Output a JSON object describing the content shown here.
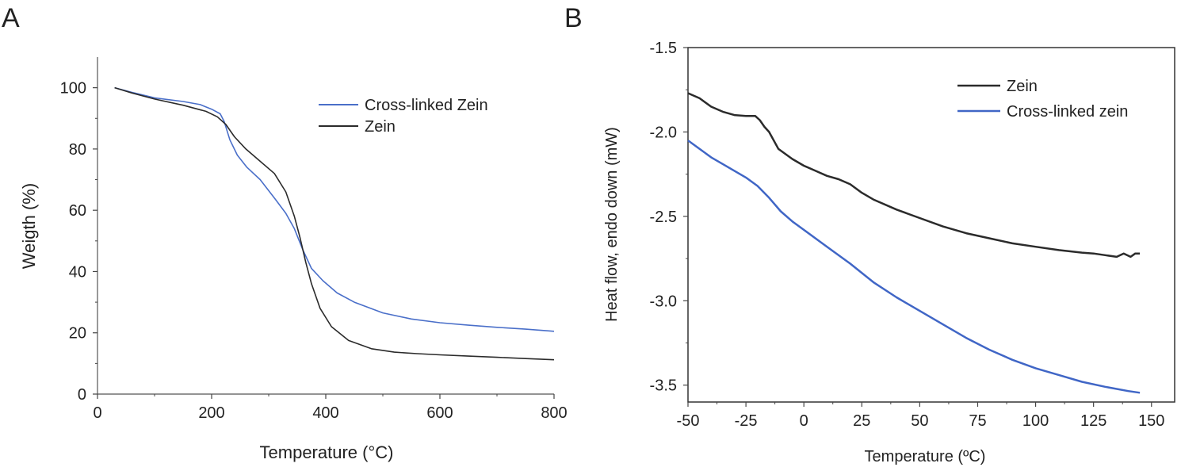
{
  "chart_data": [
    {
      "panel": "A",
      "type": "line",
      "title": "",
      "xlabel": "Temperature (°C)",
      "ylabel": "Weigth (%)",
      "xlim": [
        0,
        800
      ],
      "ylim": [
        0,
        110
      ],
      "xticks": [
        0,
        200,
        400,
        600,
        800
      ],
      "yticks": [
        0,
        20,
        40,
        60,
        80,
        100
      ],
      "grid": false,
      "legend_position": "top-right",
      "colors": {
        "Cross-linked Zein": "#4a6fc9",
        "Zein": "#2b2b2b"
      },
      "series": [
        {
          "name": "Cross-linked Zein",
          "x": [
            30,
            60,
            100,
            150,
            180,
            200,
            215,
            222,
            232,
            245,
            262,
            285,
            310,
            330,
            345,
            360,
            375,
            395,
            420,
            450,
            500,
            550,
            600,
            650,
            700,
            750,
            800
          ],
          "y": [
            100,
            98.5,
            96.7,
            95.5,
            94.5,
            93,
            91.5,
            89,
            83,
            78,
            74,
            70,
            64,
            59,
            54,
            47,
            41,
            37,
            33,
            30,
            26.5,
            24.5,
            23.3,
            22.5,
            21.8,
            21.2,
            20.5
          ]
        },
        {
          "name": "Zein",
          "x": [
            30,
            60,
            100,
            150,
            190,
            210,
            225,
            240,
            260,
            285,
            310,
            330,
            345,
            355,
            365,
            375,
            390,
            410,
            440,
            480,
            520,
            560,
            600,
            650,
            700,
            750,
            800
          ],
          "y": [
            100,
            98.3,
            96.3,
            94.3,
            92.3,
            90.5,
            88,
            84,
            80,
            76,
            72,
            66,
            58,
            51,
            43,
            36,
            28,
            22,
            17.5,
            14.8,
            13.7,
            13.2,
            12.8,
            12.4,
            12,
            11.6,
            11.2
          ]
        }
      ]
    },
    {
      "panel": "B",
      "type": "line",
      "title": "",
      "xlabel": "Temperature (ºC)",
      "ylabel": "Heat flow, endo down (mW)",
      "xlim": [
        -50,
        160
      ],
      "ylim": [
        -3.6,
        -1.5
      ],
      "xticks": [
        -50,
        -25,
        0,
        25,
        50,
        75,
        100,
        125,
        150
      ],
      "xtick_labels": [
        "-50",
        "-25",
        "0",
        "25",
        "50",
        "75",
        "100",
        "125",
        "150"
      ],
      "yticks": [
        -3.5,
        -3.0,
        -2.5,
        -2.0,
        -1.5
      ],
      "ytick_labels": [
        "-3.5",
        "-3.0",
        "-2.5",
        "-2.0",
        "-1.5"
      ],
      "grid": false,
      "legend_position": "top-right",
      "colors": {
        "Zein": "#2b2b2b",
        "Cross-linked zein": "#4066c6"
      },
      "series": [
        {
          "name": "Zein",
          "x": [
            -50,
            -45,
            -40,
            -35,
            -30,
            -25,
            -21,
            -19,
            -17,
            -15,
            -13,
            -11,
            -8,
            -5,
            0,
            5,
            10,
            15,
            20,
            25,
            30,
            40,
            50,
            60,
            70,
            80,
            90,
            100,
            110,
            120,
            125,
            130,
            135,
            138,
            141,
            143,
            145
          ],
          "y": [
            -1.77,
            -1.8,
            -1.85,
            -1.88,
            -1.9,
            -1.905,
            -1.905,
            -1.93,
            -1.97,
            -2.0,
            -2.05,
            -2.1,
            -2.13,
            -2.16,
            -2.2,
            -2.23,
            -2.26,
            -2.28,
            -2.31,
            -2.36,
            -2.4,
            -2.46,
            -2.51,
            -2.56,
            -2.6,
            -2.63,
            -2.66,
            -2.68,
            -2.7,
            -2.715,
            -2.72,
            -2.73,
            -2.74,
            -2.72,
            -2.74,
            -2.72,
            -2.72
          ]
        },
        {
          "name": "Cross-linked zein",
          "x": [
            -50,
            -45,
            -40,
            -35,
            -30,
            -25,
            -20,
            -15,
            -10,
            -5,
            0,
            10,
            20,
            30,
            40,
            50,
            60,
            70,
            80,
            90,
            100,
            110,
            120,
            130,
            140,
            145
          ],
          "y": [
            -2.05,
            -2.1,
            -2.15,
            -2.19,
            -2.23,
            -2.27,
            -2.32,
            -2.39,
            -2.47,
            -2.53,
            -2.58,
            -2.68,
            -2.78,
            -2.89,
            -2.98,
            -3.06,
            -3.14,
            -3.22,
            -3.29,
            -3.35,
            -3.4,
            -3.44,
            -3.48,
            -3.51,
            -3.535,
            -3.545
          ]
        }
      ]
    }
  ]
}
